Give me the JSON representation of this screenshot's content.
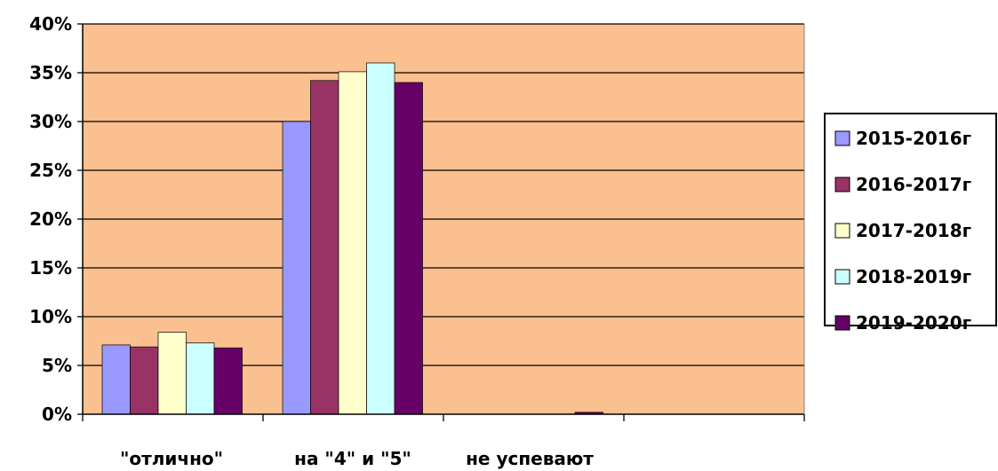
{
  "chart_data": {
    "type": "bar",
    "categories": [
      "\"отлично\"",
      "на \"4\" и \"5\"",
      "не успевают",
      ""
    ],
    "y_ticks": [
      "0%",
      "5%",
      "10%",
      "15%",
      "20%",
      "25%",
      "30%",
      "35%",
      "40%"
    ],
    "ylim": [
      0,
      40
    ],
    "grid": true,
    "legend_position": "right",
    "plot_background": "#fac090",
    "series": [
      {
        "name": "2015-2016г",
        "color": "#9999ff",
        "values": [
          7.1,
          30.0,
          0,
          0
        ]
      },
      {
        "name": "2016-2017г",
        "color": "#993366",
        "values": [
          6.9,
          34.2,
          0,
          0
        ]
      },
      {
        "name": "2017-2018г",
        "color": "#ffffcc",
        "values": [
          8.4,
          35.1,
          0,
          0
        ]
      },
      {
        "name": "2018-2019г",
        "color": "#ccffff",
        "values": [
          7.3,
          36.0,
          0,
          0
        ]
      },
      {
        "name": "2019-2020г",
        "color": "#660066",
        "values": [
          6.8,
          34.0,
          0.2,
          0
        ]
      }
    ]
  }
}
